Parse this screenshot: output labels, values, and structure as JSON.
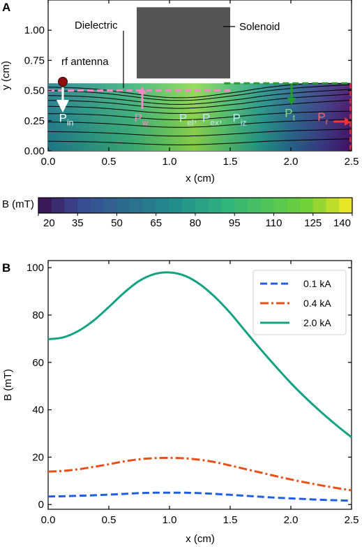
{
  "chart_data": [
    {
      "panel": "A",
      "type": "heatmap",
      "xlabel": "x (cm)",
      "ylabel": "y (cm)",
      "xlim": [
        0,
        2.5
      ],
      "ylim": [
        0,
        1.25
      ],
      "xticks": [
        "0.0",
        "0.5",
        "1.0",
        "1.5",
        "2.0",
        "2.5"
      ],
      "yticks": [
        "0.00",
        "0.25",
        "0.50",
        "0.75",
        "1.00"
      ],
      "field": {
        "x_max": 2.5,
        "y_max": 0.56
      },
      "solenoid": {
        "x": [
          0.73,
          1.5
        ],
        "y": [
          0.6,
          1.19
        ]
      },
      "annotations": {
        "dielectric": "Dielectric",
        "solenoid": "Solenoid",
        "rf_antenna": "rf antenna"
      },
      "power_labels": [
        {
          "main": "P",
          "sub": "in",
          "x": 0.09,
          "y": 0.24,
          "color": "#ffffff"
        },
        {
          "main": "P",
          "sub": "w",
          "x": 0.71,
          "y": 0.24,
          "color": "#f28ac3"
        },
        {
          "main": "P",
          "sub": "el",
          "x": 1.08,
          "y": 0.24,
          "color": "#bfe8ff",
          "suffix": ","
        },
        {
          "main": "P",
          "sub": "ex",
          "x": 1.27,
          "y": 0.24,
          "color": "#bfe8ff",
          "suffix": ","
        },
        {
          "main": "P",
          "sub": "iz",
          "x": 1.52,
          "y": 0.24,
          "color": "#bfe8ff"
        },
        {
          "main": "P",
          "sub": "t",
          "x": 1.95,
          "y": 0.28,
          "color": "#7fe07f"
        },
        {
          "main": "P",
          "sub": "r",
          "x": 2.22,
          "y": 0.25,
          "color": "#ff6666"
        }
      ],
      "colorbar": {
        "label": "B (mT)",
        "min": 20,
        "max": 140,
        "ticks": [
          "20",
          "35",
          "50",
          "65",
          "80",
          "95",
          "110",
          "125",
          "140"
        ]
      }
    },
    {
      "panel": "B",
      "type": "line",
      "xlabel": "x (cm)",
      "ylabel": "B (mT)",
      "xlim": [
        0,
        2.5
      ],
      "ylim": [
        -2,
        103
      ],
      "xticks": [
        "0.0",
        "0.5",
        "1.0",
        "1.5",
        "2.0",
        "2.5"
      ],
      "yticks": [
        "0",
        "20",
        "40",
        "60",
        "80",
        "100"
      ],
      "legend": "top-right",
      "x": [
        0,
        0.125,
        0.25,
        0.375,
        0.5,
        0.625,
        0.75,
        0.875,
        1.0,
        1.125,
        1.25,
        1.375,
        1.5,
        1.625,
        1.75,
        1.875,
        2.0,
        2.125,
        2.25,
        2.375,
        2.5
      ],
      "series": [
        {
          "name": "0.1 kA",
          "color": "#1f5fe0",
          "dash": "dashed",
          "values": [
            3.4,
            3.5,
            3.7,
            3.9,
            4.2,
            4.5,
            4.8,
            5.0,
            5.0,
            5.0,
            4.8,
            4.5,
            4.1,
            3.7,
            3.3,
            2.9,
            2.6,
            2.3,
            2.0,
            1.8,
            1.6
          ]
        },
        {
          "name": "0.4 kA",
          "color": "#e8501a",
          "dash": "dashdot",
          "values": [
            13.9,
            14.2,
            14.9,
            15.9,
            17.0,
            18.2,
            19.1,
            19.6,
            19.7,
            19.5,
            18.9,
            17.9,
            16.5,
            15.0,
            13.5,
            12.0,
            10.6,
            9.3,
            8.1,
            7.0,
            6.0
          ]
        },
        {
          "name": "2.0 kA",
          "color": "#13a383",
          "dash": "solid",
          "values": [
            69.8,
            70.6,
            73.3,
            77.7,
            83.4,
            89.4,
            94.4,
            97.3,
            98.0,
            96.6,
            93.0,
            87.6,
            80.9,
            73.2,
            65.6,
            58.3,
            51.3,
            44.9,
            39.0,
            33.5,
            28.4
          ]
        }
      ]
    }
  ]
}
